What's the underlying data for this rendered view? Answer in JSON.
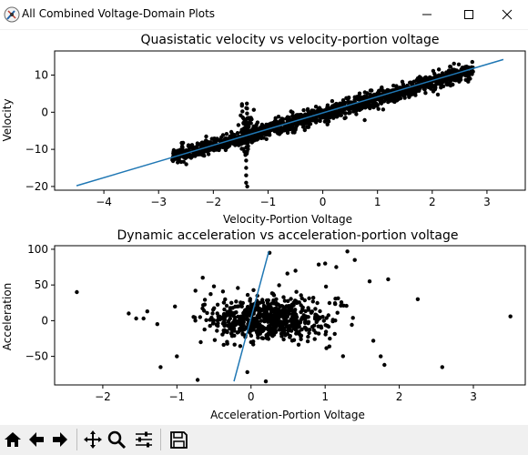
{
  "window": {
    "title": "All Combined Voltage-Domain Plots",
    "icons": [
      "app-icon",
      "minimize-icon",
      "maximize-icon",
      "close-icon"
    ]
  },
  "toolbar": {
    "buttons": [
      "home-icon",
      "back-icon",
      "forward-icon",
      "pan-icon",
      "zoom-icon",
      "configure-subplots-icon",
      "save-icon"
    ]
  },
  "colors": {
    "points": "#000000",
    "fit_line": "#1f77b4"
  },
  "chart_data": [
    {
      "type": "scatter",
      "title": "Quasistatic velocity vs velocity-portion voltage",
      "xlabel": "Velocity-Portion Voltage",
      "ylabel": "Velocity",
      "xlim": [
        -4.9,
        3.7
      ],
      "ylim": [
        -21,
        16.5
      ],
      "xticks": [
        "−4",
        "−3",
        "−2",
        "−1",
        "0",
        "1",
        "2",
        "3"
      ],
      "yticks": [
        "−20",
        "−10",
        "0",
        "10"
      ],
      "grid": false,
      "series": [
        {
          "type": "scatter",
          "description_points": "dense band along the fit line",
          "x_range": [
            -2.75,
            2.75
          ],
          "slope": 4.25,
          "intercept": -0.5,
          "outliers": [
            [
              -1.4,
              -15
            ],
            [
              -1.4,
              -17
            ],
            [
              -1.4,
              -19
            ],
            [
              -1.38,
              -20
            ],
            [
              -1.4,
              -13
            ]
          ]
        },
        {
          "type": "line",
          "points": [
            [
              -4.5,
              -19.8
            ],
            [
              3.3,
              14.2
            ]
          ]
        }
      ]
    },
    {
      "type": "scatter",
      "title": "Dynamic acceleration vs acceleration-portion voltage",
      "xlabel": "Acceleration-Portion Voltage",
      "ylabel": "Acceleration",
      "xlim": [
        -2.65,
        3.7
      ],
      "ylim": [
        -90,
        105
      ],
      "xticks": [
        "−2",
        "−1",
        "0",
        "1",
        "2",
        "3"
      ],
      "yticks": [
        "−50",
        "0",
        "50",
        "100"
      ],
      "grid": false,
      "series": [
        {
          "type": "scatter",
          "description_points": "cloud centered near origin",
          "outliers": [
            [
              -2.35,
              40
            ],
            [
              -1.65,
              10
            ],
            [
              -1.55,
              3
            ],
            [
              -1.45,
              3
            ],
            [
              -1.4,
              13
            ],
            [
              -1.22,
              -65
            ],
            [
              -1.0,
              -50
            ],
            [
              -0.75,
              42
            ],
            [
              -0.72,
              -83
            ],
            [
              -0.5,
              48
            ],
            [
              0.25,
              95
            ],
            [
              0.6,
              70
            ],
            [
              1.0,
              80
            ],
            [
              1.15,
              75
            ],
            [
              1.3,
              97
            ],
            [
              1.4,
              85
            ],
            [
              1.6,
              55
            ],
            [
              1.75,
              -50
            ],
            [
              1.85,
              58
            ],
            [
              1.8,
              -62
            ],
            [
              1.65,
              -28
            ],
            [
              2.25,
              30
            ],
            [
              2.58,
              -65
            ],
            [
              3.5,
              6
            ],
            [
              0.2,
              -85
            ],
            [
              -0.05,
              -72
            ]
          ]
        },
        {
          "type": "line",
          "points": [
            [
              -0.23,
              -85
            ],
            [
              0.24,
              97
            ]
          ]
        }
      ]
    }
  ]
}
